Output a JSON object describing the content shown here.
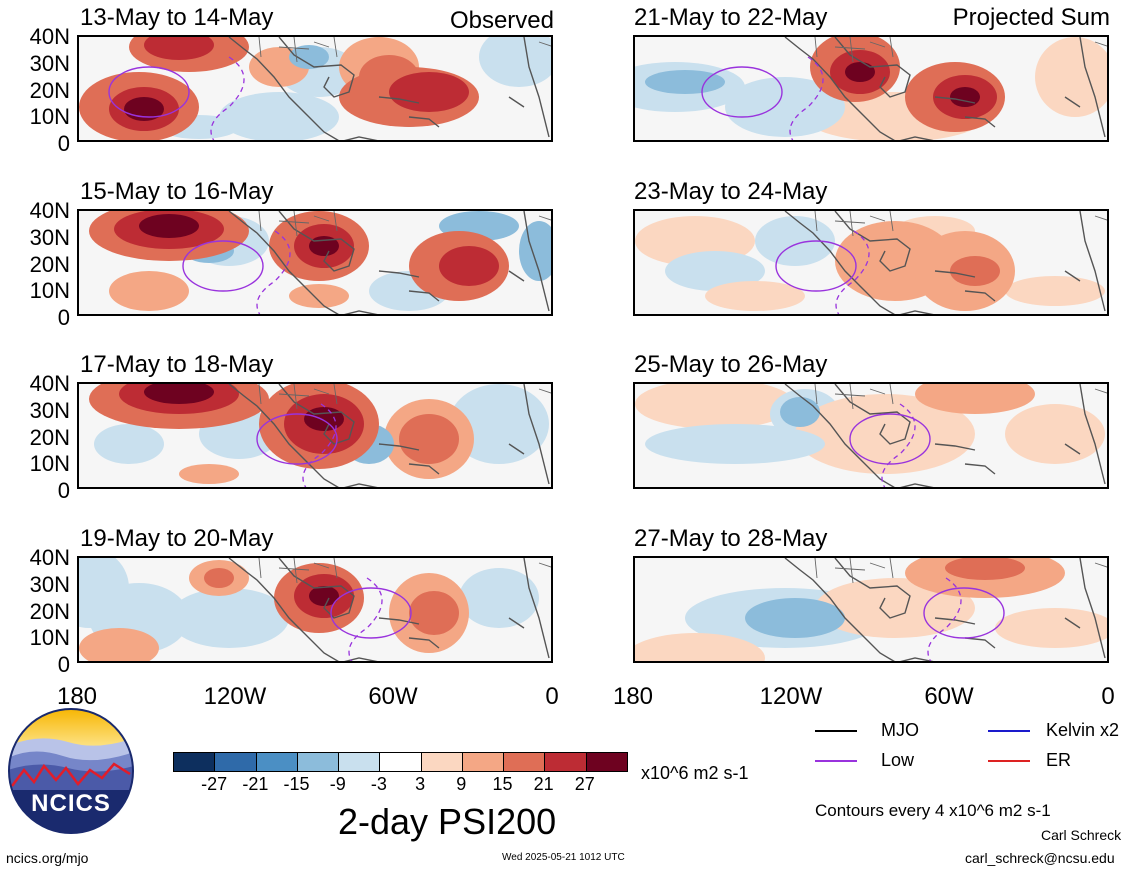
{
  "panels": [
    {
      "title": "13-May to 14-May",
      "label": "Observed"
    },
    {
      "title": "21-May to 22-May",
      "label": "Projected Sum"
    },
    {
      "title": "15-May to 16-May",
      "label": ""
    },
    {
      "title": "23-May to 24-May",
      "label": ""
    },
    {
      "title": "17-May to 18-May",
      "label": ""
    },
    {
      "title": "25-May to 26-May",
      "label": ""
    },
    {
      "title": "19-May to 20-May",
      "label": ""
    },
    {
      "title": "27-May to 28-May",
      "label": ""
    }
  ],
  "lat_labels": [
    "40N",
    "30N",
    "20N",
    "10N",
    "0"
  ],
  "lon_labels": [
    "180",
    "120W",
    "60W",
    "0"
  ],
  "colorbar": {
    "colors": [
      "#0d2f5e",
      "#2f6aa9",
      "#4b8fc4",
      "#8cbcdb",
      "#c9e0ee",
      "#ffffff",
      "#fbd7c1",
      "#f4a785",
      "#df6e56",
      "#bd2c34",
      "#6e0220"
    ],
    "labels": [
      "-27",
      "-21",
      "-15",
      "-9",
      "-3",
      "3",
      "9",
      "15",
      "21",
      "27"
    ],
    "units": "x10^6 m2 s-1"
  },
  "title": "2-day PSI200",
  "legend": {
    "items": [
      {
        "label": "MJO",
        "color": "#000000"
      },
      {
        "label": "Kelvin x2",
        "color": "#1a1acc"
      },
      {
        "label": "Low",
        "color": "#9933dd"
      },
      {
        "label": "ER",
        "color": "#dd2222"
      }
    ],
    "contour_note": "Contours every 4 x10^6 m2 s-1"
  },
  "logo": {
    "text": "NCICS"
  },
  "footer": {
    "url": "ncics.org/mjo",
    "timestamp": "Wed 2025-05-21 1012 UTC",
    "author": "Carl Schreck",
    "email": "carl_schreck@ncsu.edu"
  },
  "icons": {
    "logo": "ncics-mountain-logo"
  }
}
